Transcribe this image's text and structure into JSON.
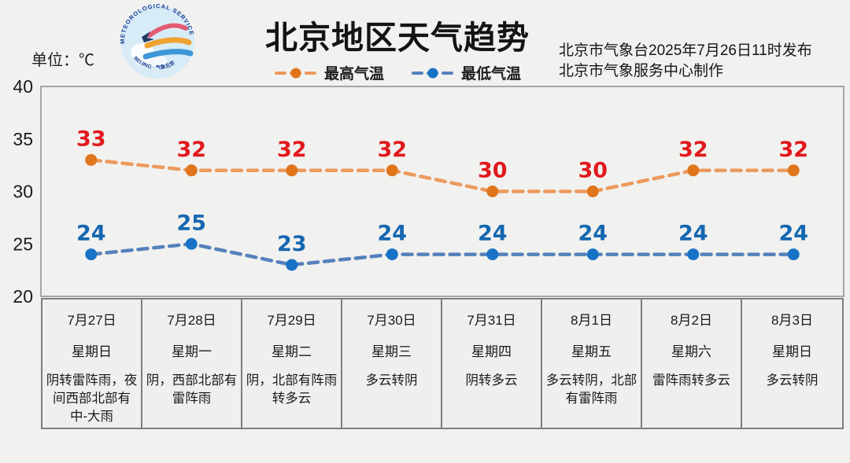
{
  "page": {
    "unit_label": "单位：℃",
    "title": "北京地区天气趋势",
    "publisher_line1": "北京市气象台2025年7月26日11时发布",
    "publisher_line2": "北京市气象服务中心制作",
    "background_color": "#F1F1EF"
  },
  "logo": {
    "text_top": "METEOROLOGICAL SERVICE",
    "text_bottom": "BEIJING · 气象北京"
  },
  "legend": [
    {
      "label": "最高气温",
      "line_color": "#EC9A5C",
      "marker_color": "#E0751C"
    },
    {
      "label": "最低气温",
      "line_color": "#5581BC",
      "marker_color": "#1873C6"
    }
  ],
  "chart_data": {
    "type": "line",
    "title": "北京地区天气趋势",
    "categories": [
      "7月27日",
      "7月28日",
      "7月29日",
      "7月30日",
      "7月31日",
      "8月1日",
      "8月2日",
      "8月3日"
    ],
    "weekdays": [
      "星期日",
      "星期一",
      "星期二",
      "星期三",
      "星期四",
      "星期五",
      "星期六",
      "星期日"
    ],
    "weather": [
      "阴转雷阵雨，夜间西部北部有中-大雨",
      "阴，西部北部有雷阵雨",
      "阴，北部有阵雨转多云",
      "多云转阴",
      "阴转多云",
      "多云转阴，北部有雷阵雨",
      "雷阵雨转多云",
      "多云转阴"
    ],
    "series": [
      {
        "name": "最高气温",
        "values": [
          33,
          32,
          32,
          32,
          30,
          30,
          32,
          32
        ],
        "line_color": "#EC9A5C",
        "marker_color": "#E0751C",
        "label_color": "#E1191D",
        "style": "dashed"
      },
      {
        "name": "最低气温",
        "values": [
          24,
          25,
          23,
          24,
          24,
          24,
          24,
          24
        ],
        "line_color": "#5581BC",
        "marker_color": "#1873C6",
        "label_color": "#1567B0",
        "style": "dashed"
      }
    ],
    "ylabel": "℃",
    "ylim": [
      20,
      40
    ],
    "yticks": [
      20,
      25,
      30,
      35,
      40
    ],
    "grid": false,
    "legend_position": "top-center",
    "data_labels": true
  }
}
